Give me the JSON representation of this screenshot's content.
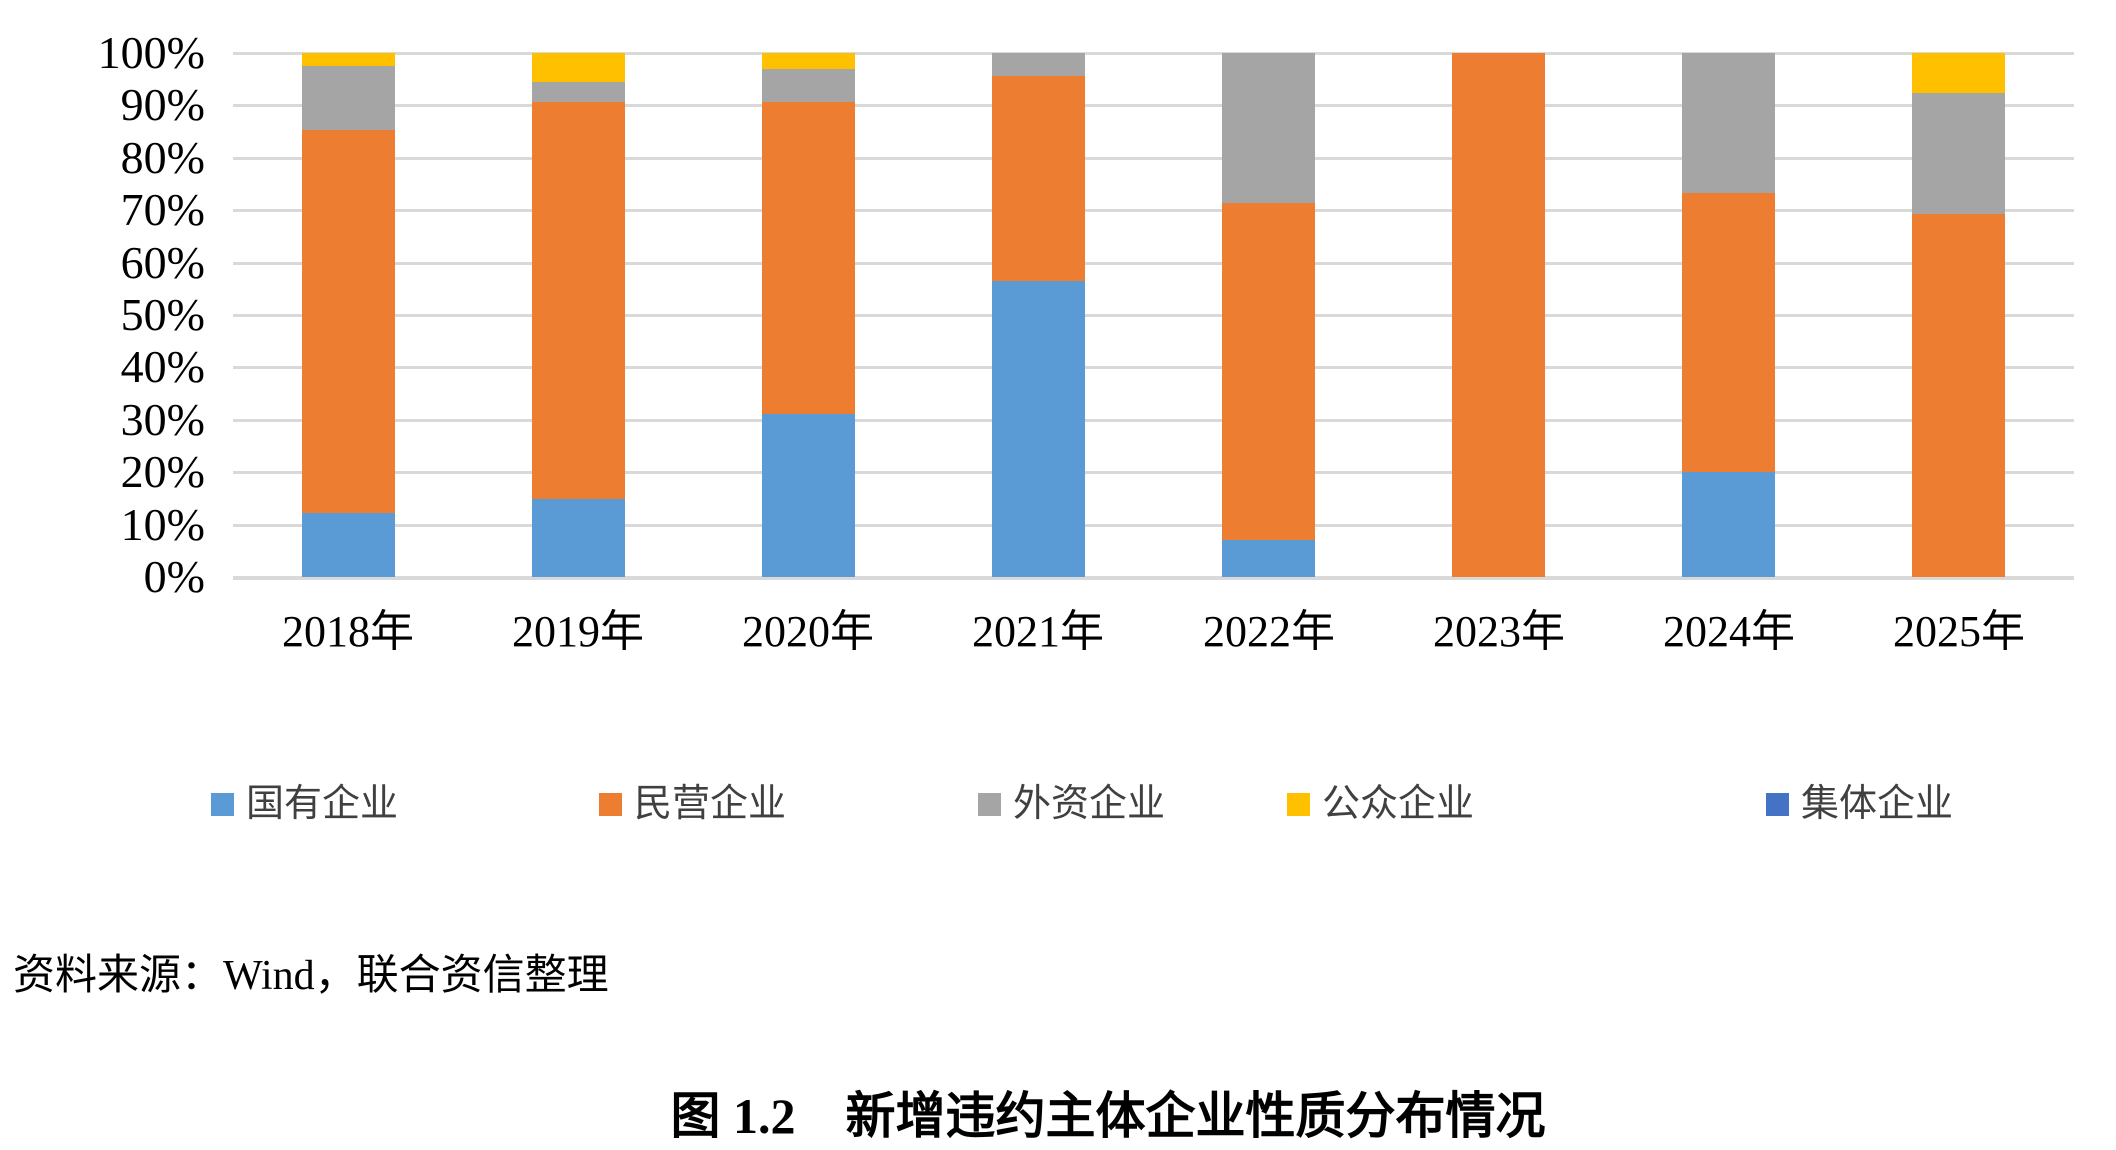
{
  "chart_data": {
    "type": "bar",
    "variant": "stacked-100-percent",
    "unit": "%",
    "categories": [
      "2018年",
      "2019年",
      "2020年",
      "2021年",
      "2022年",
      "2023年",
      "2024年",
      "2025年"
    ],
    "series": [
      {
        "name": "国有企业",
        "color": "#5B9BD5",
        "values": [
          12.2,
          14.8,
          31.2,
          56.5,
          7.1,
          0,
          20.0,
          0
        ]
      },
      {
        "name": "民营企业",
        "color": "#ED7D31",
        "values": [
          73.2,
          75.9,
          59.4,
          39.2,
          64.3,
          100.0,
          53.3,
          69.2
        ]
      },
      {
        "name": "外资企业",
        "color": "#A5A5A5",
        "values": [
          12.2,
          3.7,
          6.3,
          4.3,
          28.6,
          0,
          26.7,
          23.1
        ]
      },
      {
        "name": "公众企业",
        "color": "#FFC000",
        "values": [
          2.4,
          5.6,
          3.1,
          0,
          0,
          0,
          0,
          7.7
        ]
      },
      {
        "name": "集体企业",
        "color": "#4472C4",
        "values": [
          0,
          0,
          0,
          0,
          0,
          0,
          0,
          0
        ]
      }
    ],
    "ylim": [
      0,
      100
    ],
    "y_ticks": [
      "100%",
      "90%",
      "80%",
      "70%",
      "60%",
      "50%",
      "40%",
      "30%",
      "20%",
      "10%",
      "0%"
    ],
    "y_tick_values": [
      100,
      90,
      80,
      70,
      60,
      50,
      40,
      30,
      20,
      10,
      0
    ],
    "grid": "horizontal",
    "legend_position": "bottom",
    "title": ""
  },
  "colors": {
    "gridline": "#D9D9D9",
    "axis_line": "#D9D9D9",
    "tick_text": "#000000",
    "legend_text": "#404040"
  },
  "source": {
    "text": "资料来源：Wind，联合资信整理"
  },
  "caption": {
    "text": "图 1.2　新增违约主体企业性质分布情况"
  }
}
